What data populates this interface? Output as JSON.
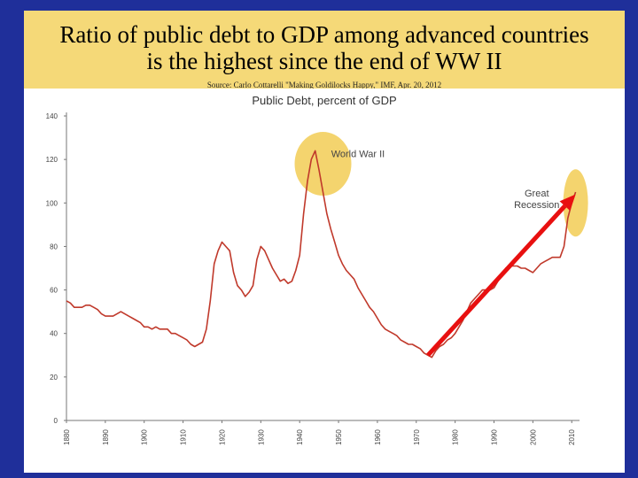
{
  "slide": {
    "title_line1": "Ratio of public debt to GDP among advanced countries",
    "title_line2": "is the highest since the end of WW II",
    "source": "Source: Carlo Cottarelli \"Making Goldilocks Happy,\" IMF, Apr. 20, 2012"
  },
  "colors": {
    "background": "#1f2f9a",
    "header": "#f5d978",
    "line": "#c0392b",
    "highlight": "#f2cd55",
    "arrow": "#e81010"
  },
  "chart_data": {
    "type": "line",
    "title": "Public Debt, percent of GDP",
    "xlabel": "",
    "ylabel": "",
    "xlim": [
      1880,
      2012
    ],
    "ylim": [
      0,
      140
    ],
    "y_ticks": [
      0,
      20,
      40,
      60,
      80,
      100,
      120,
      140
    ],
    "x_ticks": [
      1880,
      1890,
      1900,
      1910,
      1920,
      1930,
      1940,
      1950,
      1960,
      1970,
      1980,
      1990,
      2000,
      2010
    ],
    "grid": false,
    "annotations": [
      {
        "text_lines": [
          "World War II"
        ],
        "x": 1955,
        "y": 121,
        "highlight_center": [
          1946,
          118
        ]
      },
      {
        "text_lines": [
          "Great",
          "Recession"
        ],
        "x": 2001,
        "y": 103,
        "highlight_center": [
          2011,
          100
        ]
      }
    ],
    "trend_arrow": {
      "from": [
        1973,
        30
      ],
      "to": [
        2011,
        104
      ]
    },
    "series": [
      {
        "x": [
          1880,
          1881,
          1882,
          1883,
          1884,
          1885,
          1886,
          1887,
          1888,
          1889,
          1890,
          1891,
          1892,
          1893,
          1894,
          1895,
          1896,
          1897,
          1898,
          1899,
          1900,
          1901,
          1902,
          1903,
          1904,
          1905,
          1906,
          1907,
          1908,
          1909,
          1910,
          1911,
          1912,
          1913,
          1914,
          1915,
          1916,
          1917,
          1918,
          1919,
          1920,
          1921,
          1922,
          1923,
          1924,
          1925,
          1926,
          1927,
          1928,
          1929,
          1930,
          1931,
          1932,
          1933,
          1934,
          1935,
          1936,
          1937,
          1938,
          1939,
          1940,
          1941,
          1942,
          1943,
          1944,
          1945,
          1946,
          1947,
          1948,
          1949,
          1950,
          1951,
          1952,
          1953,
          1954,
          1955,
          1956,
          1957,
          1958,
          1959,
          1960,
          1961,
          1962,
          1963,
          1964,
          1965,
          1966,
          1967,
          1968,
          1969,
          1970,
          1971,
          1972,
          1973,
          1974,
          1975,
          1976,
          1977,
          1978,
          1979,
          1980,
          1981,
          1982,
          1983,
          1984,
          1985,
          1986,
          1987,
          1988,
          1989,
          1990,
          1991,
          1992,
          1993,
          1994,
          1995,
          1996,
          1997,
          1998,
          1999,
          2000,
          2001,
          2002,
          2003,
          2004,
          2005,
          2006,
          2007,
          2008,
          2009,
          2010,
          2011
        ],
        "values": [
          55,
          54,
          52,
          52,
          52,
          53,
          53,
          52,
          51,
          49,
          48,
          48,
          48,
          49,
          50,
          49,
          48,
          47,
          46,
          45,
          43,
          43,
          42,
          43,
          42,
          42,
          42,
          40,
          40,
          39,
          38,
          37,
          35,
          34,
          35,
          36,
          42,
          55,
          72,
          78,
          82,
          80,
          78,
          68,
          62,
          60,
          57,
          59,
          62,
          74,
          80,
          78,
          74,
          70,
          67,
          64,
          65,
          63,
          64,
          69,
          76,
          95,
          110,
          120,
          124,
          115,
          105,
          95,
          88,
          82,
          76,
          72,
          69,
          67,
          65,
          61,
          58,
          55,
          52,
          50,
          47,
          44,
          42,
          41,
          40,
          39,
          37,
          36,
          35,
          35,
          34,
          33,
          31,
          30,
          29,
          32,
          34,
          35,
          37,
          38,
          40,
          43,
          46,
          50,
          54,
          56,
          58,
          60,
          60,
          60,
          61,
          64,
          67,
          70,
          71,
          71,
          71,
          70,
          70,
          69,
          68,
          70,
          72,
          73,
          74,
          75,
          75,
          75,
          80,
          93,
          100,
          105
        ]
      }
    ]
  }
}
